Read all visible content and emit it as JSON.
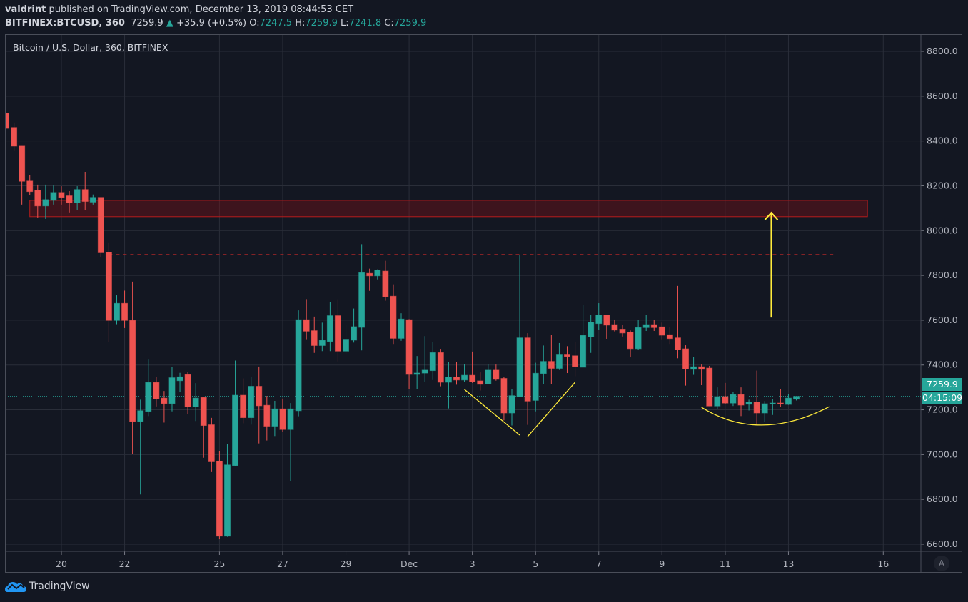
{
  "header": {
    "author": "valdrint",
    "published": " published on TradingView.com, December 13, 2019 08:44:53 CET",
    "symbol": "BITFINEX:BTCUSD, 360",
    "last": "7259.9",
    "change": "+35.9 (+0.5%)",
    "o_label": "O:",
    "o": "7247.5",
    "h_label": "H:",
    "h": "7259.9",
    "l_label": "L:",
    "l": "7241.8",
    "c_label": "C:",
    "c": "7259.9"
  },
  "footer": {
    "brand": "TradingView",
    "logo_icon": "tradingview-cloud-icon"
  },
  "chart_data": {
    "type": "candlestick",
    "title": "Bitcoin / U.S. Dollar, 360, BITFINEX",
    "interval_minutes": 360,
    "ylim": [
      6550,
      8880
    ],
    "grid": true,
    "colors": {
      "background": "#131722",
      "grid": "#2a2e39",
      "up": "#26a69a",
      "down": "#ef5350",
      "zone": "#8b0f14",
      "annotation": "#ffeb3b"
    },
    "price_ticks": [
      "6600.0",
      "6800.0",
      "7000.0",
      "7200.0",
      "7400.0",
      "7600.0",
      "7800.0",
      "8000.0",
      "8200.0",
      "8400.0",
      "8600.0",
      "8800.0"
    ],
    "time_ticks": [
      {
        "label": "20",
        "t": "2019-11-20T00:00"
      },
      {
        "label": "22",
        "t": "2019-11-22T00:00"
      },
      {
        "label": "25",
        "t": "2019-11-25T00:00"
      },
      {
        "label": "27",
        "t": "2019-11-27T00:00"
      },
      {
        "label": "29",
        "t": "2019-11-29T00:00"
      },
      {
        "label": "Dec",
        "t": "2019-12-01T00:00"
      },
      {
        "label": "3",
        "t": "2019-12-03T00:00"
      },
      {
        "label": "5",
        "t": "2019-12-05T00:00"
      },
      {
        "label": "7",
        "t": "2019-12-07T00:00"
      },
      {
        "label": "9",
        "t": "2019-12-09T00:00"
      },
      {
        "label": "11",
        "t": "2019-12-11T00:00"
      },
      {
        "label": "13",
        "t": "2019-12-13T00:00"
      },
      {
        "label": "16",
        "t": "2019-12-16T00:00"
      }
    ],
    "current_price": {
      "value": "7259.9",
      "countdown": "04:15:09"
    },
    "auto_scale_label": "A",
    "candles": [
      [
        "2019-11-18T06:00",
        8523,
        8530,
        8450,
        8456
      ],
      [
        "2019-11-18T12:00",
        8460,
        8482,
        8358,
        8377
      ],
      [
        "2019-11-18T18:00",
        8380,
        8380,
        8116,
        8220
      ],
      [
        "2019-11-19T00:00",
        8221,
        8249,
        8160,
        8174
      ],
      [
        "2019-11-19T06:00",
        8180,
        8205,
        8055,
        8110
      ],
      [
        "2019-11-19T12:00",
        8110,
        8205,
        8052,
        8138
      ],
      [
        "2019-11-19T18:00",
        8135,
        8201,
        8116,
        8170
      ],
      [
        "2019-11-20T00:00",
        8170,
        8198,
        8116,
        8148
      ],
      [
        "2019-11-20T06:00",
        8155,
        8176,
        8081,
        8125
      ],
      [
        "2019-11-20T12:00",
        8125,
        8198,
        8093,
        8183
      ],
      [
        "2019-11-20T18:00",
        8183,
        8262,
        8090,
        8130
      ],
      [
        "2019-11-21T00:00",
        8127,
        8161,
        8116,
        8148
      ],
      [
        "2019-11-21T06:00",
        8148,
        8148,
        7880,
        7901
      ],
      [
        "2019-11-21T12:00",
        7903,
        7947,
        7501,
        7599
      ],
      [
        "2019-11-21T18:00",
        7599,
        7711,
        7582,
        7675
      ],
      [
        "2019-11-22T00:00",
        7675,
        7732,
        7565,
        7599
      ],
      [
        "2019-11-22T06:00",
        7599,
        7772,
        7004,
        7148
      ],
      [
        "2019-11-22T12:00",
        7148,
        7245,
        6822,
        7196
      ],
      [
        "2019-11-22T18:00",
        7193,
        7424,
        7172,
        7322
      ],
      [
        "2019-11-23T00:00",
        7322,
        7346,
        7215,
        7249
      ],
      [
        "2019-11-23T06:00",
        7252,
        7284,
        7143,
        7228
      ],
      [
        "2019-11-23T12:00",
        7228,
        7390,
        7193,
        7343
      ],
      [
        "2019-11-23T18:00",
        7330,
        7365,
        7278,
        7347
      ],
      [
        "2019-11-24T00:00",
        7357,
        7368,
        7182,
        7213
      ],
      [
        "2019-11-24T06:00",
        7213,
        7319,
        7150,
        7252
      ],
      [
        "2019-11-24T12:00",
        7255,
        7255,
        6986,
        7130
      ],
      [
        "2019-11-24T18:00",
        7133,
        7164,
        6922,
        6968
      ],
      [
        "2019-11-25T00:00",
        6971,
        7016,
        6622,
        6636
      ],
      [
        "2019-11-25T06:00",
        6636,
        7046,
        6633,
        6954
      ],
      [
        "2019-11-25T12:00",
        6951,
        7420,
        6948,
        7265
      ],
      [
        "2019-11-25T18:00",
        7265,
        7340,
        7140,
        7165
      ],
      [
        "2019-11-26T00:00",
        7165,
        7346,
        7134,
        7305
      ],
      [
        "2019-11-26T06:00",
        7305,
        7393,
        7050,
        7218
      ],
      [
        "2019-11-26T12:00",
        7220,
        7262,
        7063,
        7127
      ],
      [
        "2019-11-26T18:00",
        7127,
        7240,
        7083,
        7204
      ],
      [
        "2019-11-27T00:00",
        7204,
        7250,
        7100,
        7112
      ],
      [
        "2019-11-27T06:00",
        7112,
        7230,
        6881,
        7204
      ],
      [
        "2019-11-27T12:00",
        7196,
        7644,
        7171,
        7602
      ],
      [
        "2019-11-27T18:00",
        7602,
        7694,
        7515,
        7551
      ],
      [
        "2019-11-28T00:00",
        7553,
        7616,
        7454,
        7487
      ],
      [
        "2019-11-28T06:00",
        7487,
        7589,
        7462,
        7510
      ],
      [
        "2019-11-28T12:00",
        7505,
        7682,
        7462,
        7620
      ],
      [
        "2019-11-28T18:00",
        7620,
        7694,
        7416,
        7462
      ],
      [
        "2019-11-29T00:00",
        7462,
        7580,
        7446,
        7515
      ],
      [
        "2019-11-29T06:00",
        7511,
        7652,
        7500,
        7571
      ],
      [
        "2019-11-29T12:00",
        7568,
        7939,
        7465,
        7812
      ],
      [
        "2019-11-29T18:00",
        7809,
        7830,
        7731,
        7798
      ],
      [
        "2019-11-30T00:00",
        7798,
        7827,
        7782,
        7823
      ],
      [
        "2019-11-30T06:00",
        7819,
        7865,
        7687,
        7705
      ],
      [
        "2019-11-30T12:00",
        7707,
        7760,
        7494,
        7519
      ],
      [
        "2019-11-30T18:00",
        7519,
        7631,
        7508,
        7605
      ],
      [
        "2019-12-01T00:00",
        7602,
        7605,
        7291,
        7358
      ],
      [
        "2019-12-01T06:00",
        7358,
        7440,
        7291,
        7364
      ],
      [
        "2019-12-01T12:00",
        7364,
        7529,
        7326,
        7377
      ],
      [
        "2019-12-01T18:00",
        7375,
        7501,
        7333,
        7455
      ],
      [
        "2019-12-02T00:00",
        7455,
        7472,
        7305,
        7323
      ],
      [
        "2019-12-02T06:00",
        7323,
        7414,
        7206,
        7345
      ],
      [
        "2019-12-02T12:00",
        7346,
        7414,
        7312,
        7333
      ],
      [
        "2019-12-02T18:00",
        7333,
        7405,
        7323,
        7354
      ],
      [
        "2019-12-03T00:00",
        7354,
        7460,
        7320,
        7326
      ],
      [
        "2019-12-03T06:00",
        7329,
        7367,
        7286,
        7314
      ],
      [
        "2019-12-03T12:00",
        7316,
        7402,
        7314,
        7377
      ],
      [
        "2019-12-03T18:00",
        7377,
        7402,
        7330,
        7336
      ],
      [
        "2019-12-04T00:00",
        7340,
        7345,
        7153,
        7186
      ],
      [
        "2019-12-04T06:00",
        7186,
        7291,
        7130,
        7263
      ],
      [
        "2019-12-04T12:00",
        7259,
        7892,
        7257,
        7521
      ],
      [
        "2019-12-04T18:00",
        7521,
        7542,
        7133,
        7239
      ],
      [
        "2019-12-05T00:00",
        7242,
        7410,
        7193,
        7363
      ],
      [
        "2019-12-05T06:00",
        7362,
        7487,
        7314,
        7416
      ],
      [
        "2019-12-05T12:00",
        7416,
        7536,
        7314,
        7385
      ],
      [
        "2019-12-05T18:00",
        7385,
        7498,
        7378,
        7445
      ],
      [
        "2019-12-06T00:00",
        7445,
        7484,
        7364,
        7438
      ],
      [
        "2019-12-06T06:00",
        7441,
        7501,
        7350,
        7393
      ],
      [
        "2019-12-06T12:00",
        7390,
        7667,
        7390,
        7532
      ],
      [
        "2019-12-06T18:00",
        7526,
        7624,
        7454,
        7591
      ],
      [
        "2019-12-07T00:00",
        7585,
        7676,
        7556,
        7623
      ],
      [
        "2019-12-07T06:00",
        7623,
        7623,
        7517,
        7578
      ],
      [
        "2019-12-07T12:00",
        7580,
        7603,
        7550,
        7556
      ],
      [
        "2019-12-07T18:00",
        7560,
        7580,
        7527,
        7543
      ],
      [
        "2019-12-08T00:00",
        7546,
        7554,
        7434,
        7473
      ],
      [
        "2019-12-08T06:00",
        7473,
        7600,
        7469,
        7567
      ],
      [
        "2019-12-08T12:00",
        7567,
        7625,
        7552,
        7580
      ],
      [
        "2019-12-08T18:00",
        7580,
        7600,
        7552,
        7567
      ],
      [
        "2019-12-09T00:00",
        7570,
        7589,
        7515,
        7533
      ],
      [
        "2019-12-09T06:00",
        7535,
        7571,
        7494,
        7518
      ],
      [
        "2019-12-09T12:00",
        7521,
        7753,
        7430,
        7469
      ],
      [
        "2019-12-09T18:00",
        7472,
        7488,
        7308,
        7382
      ],
      [
        "2019-12-10T00:00",
        7381,
        7437,
        7356,
        7392
      ],
      [
        "2019-12-10T06:00",
        7392,
        7402,
        7310,
        7381
      ],
      [
        "2019-12-10T12:00",
        7386,
        7396,
        7217,
        7217
      ],
      [
        "2019-12-10T18:00",
        7217,
        7300,
        7204,
        7259
      ],
      [
        "2019-12-11T00:00",
        7259,
        7320,
        7225,
        7230
      ],
      [
        "2019-12-11T06:00",
        7230,
        7281,
        7217,
        7268
      ],
      [
        "2019-12-11T12:00",
        7268,
        7300,
        7172,
        7221
      ],
      [
        "2019-12-11T18:00",
        7225,
        7245,
        7197,
        7235
      ],
      [
        "2019-12-12T00:00",
        7235,
        7375,
        7135,
        7186
      ],
      [
        "2019-12-12T06:00",
        7186,
        7239,
        7147,
        7227
      ],
      [
        "2019-12-12T12:00",
        7226,
        7249,
        7177,
        7230
      ],
      [
        "2019-12-12T18:00",
        7230,
        7292,
        7213,
        7226
      ],
      [
        "2019-12-13T00:00",
        7224,
        7270,
        7222,
        7252
      ],
      [
        "2019-12-13T06:00",
        7247.5,
        7259.9,
        7241.8,
        7259.9
      ]
    ],
    "drawings": {
      "resistance_zone": {
        "t1": "2019-11-19T00:00",
        "t2": "2019-12-15T12:00",
        "p_top": 8135,
        "p_bottom": 8062
      },
      "dashed_line": {
        "t1": "2019-11-21T12:00",
        "t2": "2019-12-14T10:00",
        "price": 7893
      },
      "arrow": {
        "t": "2019-12-12T11:00",
        "p_from": 7612,
        "p_to": 8080
      },
      "lines": [
        {
          "t1": "2019-12-02T18:00",
          "p1": 7291,
          "t2": "2019-12-04T12:00",
          "p2": 7087
        },
        {
          "t1": "2019-12-04T18:00",
          "p1": 7081,
          "t2": "2019-12-06T06:00",
          "p2": 7323
        }
      ],
      "arc": {
        "t1": "2019-12-10T06:00",
        "p1": 7211,
        "tm": "2019-12-12T04:00",
        "pm": 7132,
        "t2": "2019-12-14T07:00",
        "p2": 7214
      }
    }
  }
}
